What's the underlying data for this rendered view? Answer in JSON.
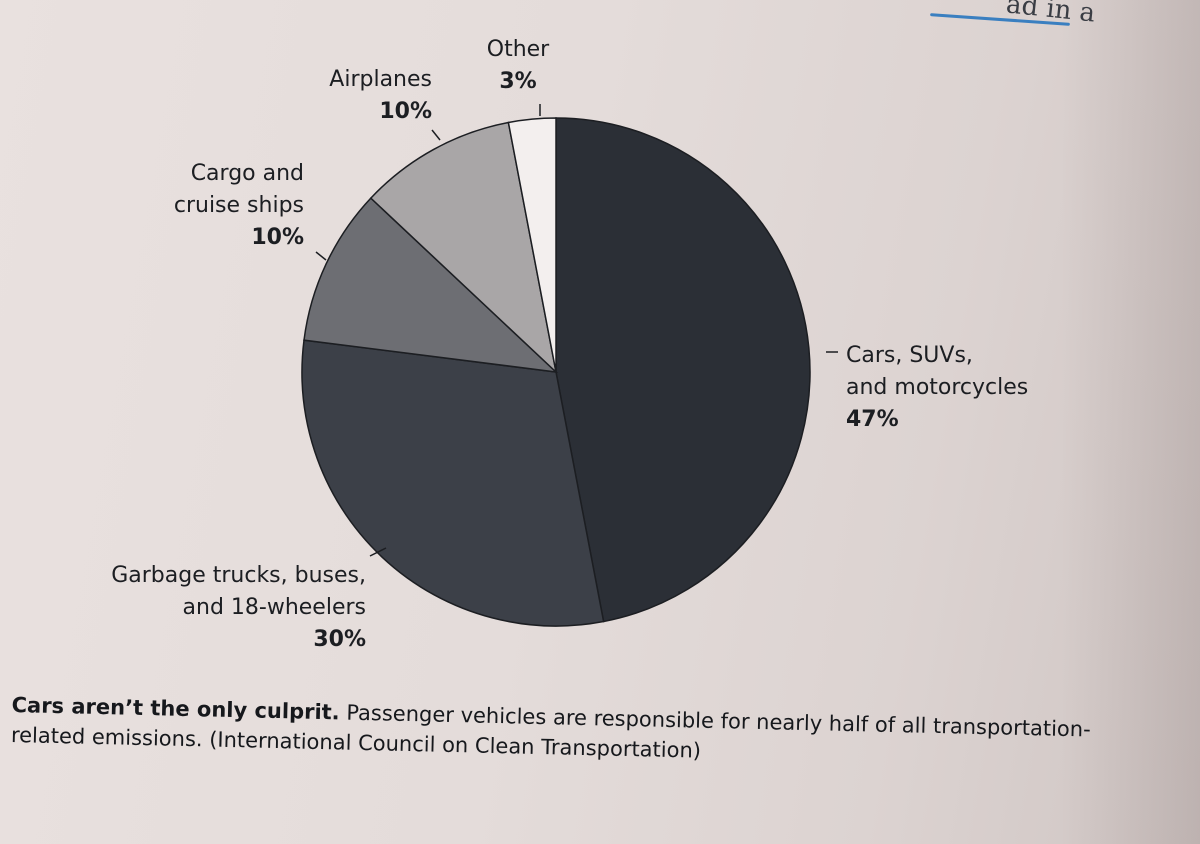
{
  "corner_text": "ad in a",
  "caption": {
    "bold": "Cars aren’t the only culprit.",
    "rest": " Passenger vehicles are responsible for nearly half of all transportation-related emissions. (International Council on Clean Transportation)"
  },
  "chart_data": {
    "type": "pie",
    "title": "",
    "unit": "%",
    "slices": [
      {
        "label_lines": [
          "Cars, SUVs,",
          "and motorcycles"
        ],
        "value": 47,
        "value_label": "47%",
        "color": "#2b2f36"
      },
      {
        "label_lines": [
          "Garbage trucks, buses,",
          "and 18-wheelers"
        ],
        "value": 30,
        "value_label": "30%",
        "color": "#3c4048"
      },
      {
        "label_lines": [
          "Cargo and",
          "cruise ships"
        ],
        "value": 10,
        "value_label": "10%",
        "color": "#6d6e73"
      },
      {
        "label_lines": [
          "Airplanes"
        ],
        "value": 10,
        "value_label": "10%",
        "color": "#a9a6a7"
      },
      {
        "label_lines": [
          "Other"
        ],
        "value": 3,
        "value_label": "3%",
        "color": "#f3efee"
      }
    ],
    "start": "12 o'clock",
    "direction": "clockwise",
    "legend": "none (direct labels)"
  }
}
